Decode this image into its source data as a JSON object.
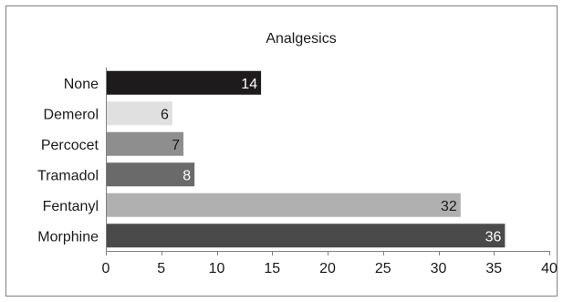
{
  "chart_data": {
    "type": "bar",
    "orientation": "horizontal",
    "title": "Analgesics",
    "xlabel": "",
    "ylabel": "",
    "categories": [
      "None",
      "Demerol",
      "Percocet",
      "Tramadol",
      "Fentanyl",
      "Morphine"
    ],
    "values": [
      14,
      6,
      7,
      8,
      32,
      36
    ],
    "colors": [
      "#1e1b1c",
      "#e0e0e0",
      "#8e8e8e",
      "#6a6a6a",
      "#b0b0b0",
      "#4a4a4a"
    ],
    "label_colors": [
      "#ffffff",
      "#1a1a1a",
      "#1a1a1a",
      "#ffffff",
      "#1a1a1a",
      "#ffffff"
    ],
    "xlim": [
      0,
      40
    ],
    "xticks": [
      0,
      5,
      10,
      15,
      20,
      25,
      30,
      35,
      40
    ],
    "grid": false,
    "legend": "none"
  }
}
